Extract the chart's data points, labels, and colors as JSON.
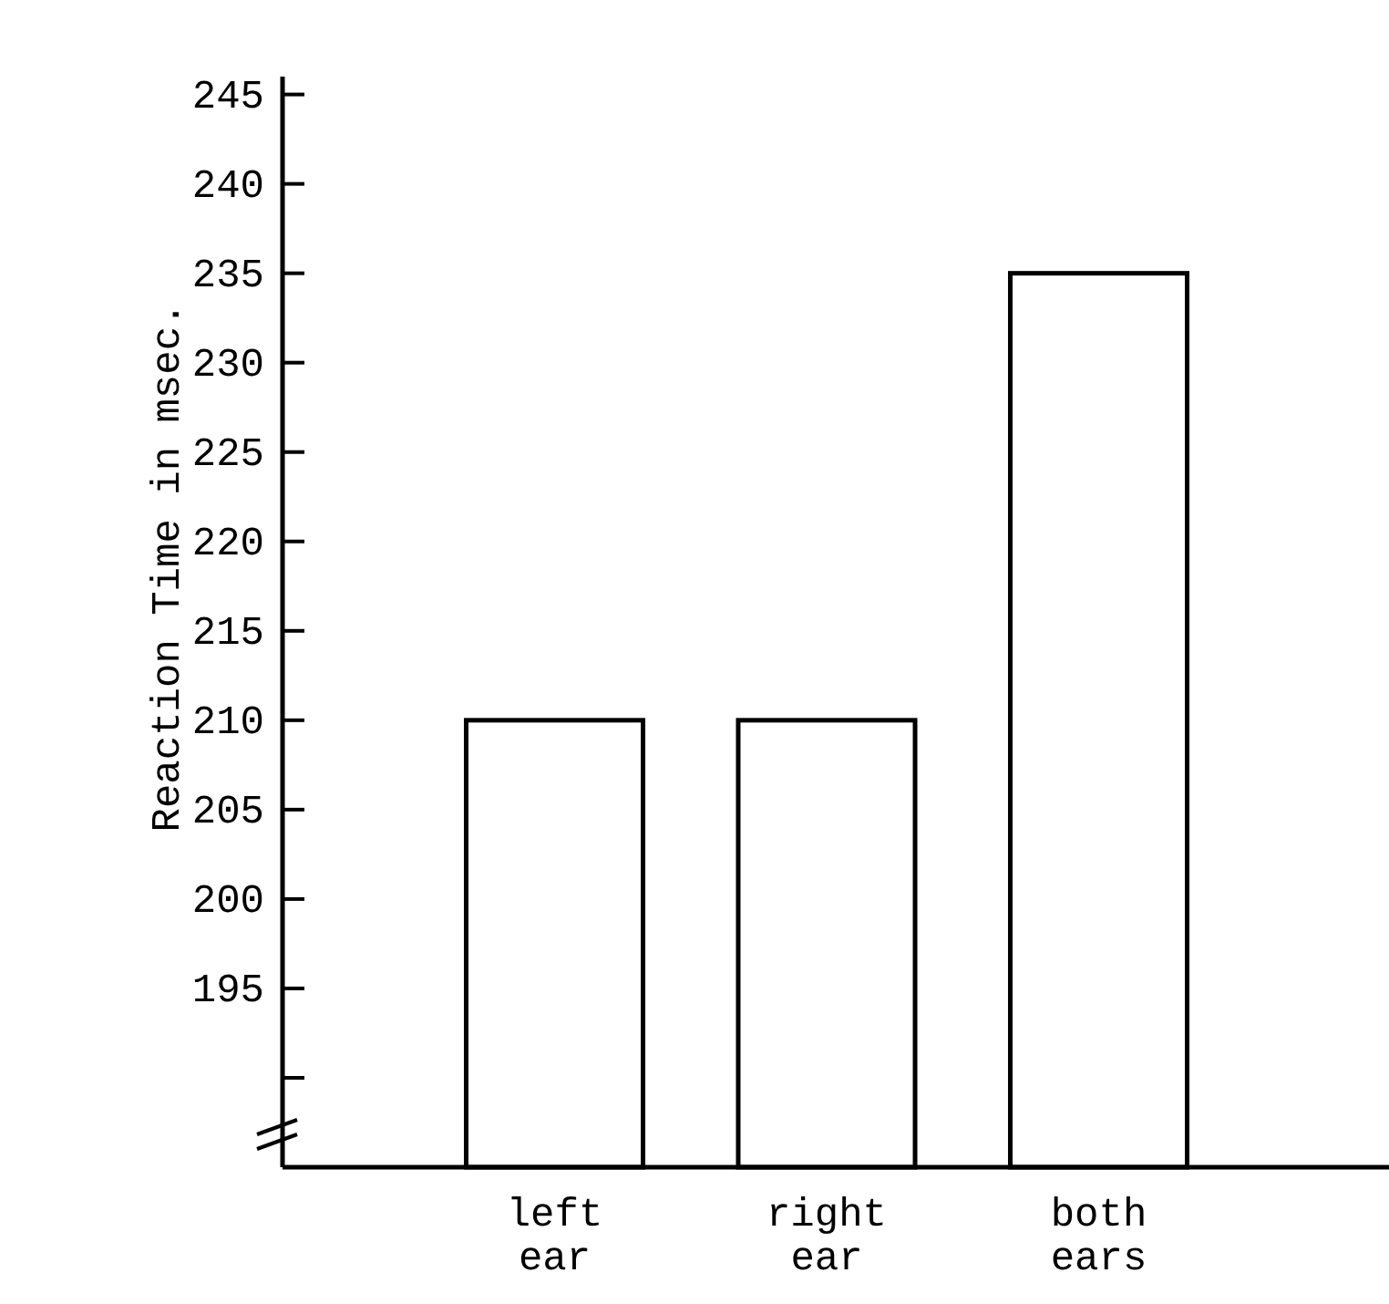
{
  "chart_data": {
    "type": "bar",
    "ylabel": "Reaction Time in msec.",
    "categories": [
      "left ear",
      "right ear",
      "both ears"
    ],
    "values": [
      210,
      210,
      235
    ],
    "color": "#ffffff",
    "ylim": [
      185,
      246
    ],
    "yticks": [
      {
        "value": 190,
        "label": null
      },
      195,
      200,
      205,
      210,
      215,
      220,
      225,
      230,
      235,
      240,
      245
    ],
    "grid": false
  }
}
